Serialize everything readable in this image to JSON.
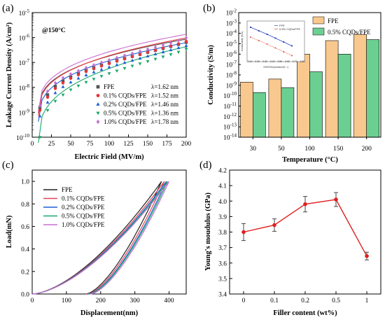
{
  "chart_data": [
    {
      "panel": "(a)",
      "type": "scatter",
      "xlabel": "Electric Field (MV/m)",
      "ylabel": "Leakage Current Density (A/cm²)",
      "annotation": "@150°C",
      "xlim": [
        0,
        200
      ],
      "ylim_exp": [
        -10,
        -5
      ],
      "ylog": true,
      "x_ticks": [
        "0",
        "25",
        "50",
        "75",
        "100",
        "125",
        "150",
        "175",
        "200"
      ],
      "y_ticks": [
        {
          "base": "10",
          "exp": "-10"
        },
        {
          "base": "10",
          "exp": "-9"
        },
        {
          "base": "10",
          "exp": "-8"
        },
        {
          "base": "10",
          "exp": "-7"
        },
        {
          "base": "10",
          "exp": "-6"
        },
        {
          "base": "10",
          "exp": "-5"
        }
      ],
      "x": [
        10,
        20,
        30,
        40,
        50,
        60,
        70,
        80,
        90,
        100,
        110,
        120,
        130,
        140,
        150,
        160,
        170,
        180,
        190,
        200
      ],
      "series": [
        {
          "name": "FPE",
          "lambda": "λ=1.62 nm",
          "color": "#555555",
          "marker": "square",
          "values": [
            1.5e-09,
            5e-09,
            1.1e-08,
            1.8e-08,
            2.6e-08,
            3.6e-08,
            4.8e-08,
            6.2e-08,
            7.8e-08,
            9.6e-08,
            1.2e-07,
            1.45e-07,
            1.75e-07,
            2.1e-07,
            2.55e-07,
            3.05e-07,
            3.65e-07,
            4.4e-07,
            5.3e-07,
            6.5e-07
          ]
        },
        {
          "name": "0.1% CQDs/FPE",
          "lambda": "λ=1.52 nm",
          "color": "#e8343c",
          "marker": "circle",
          "values": [
            1.2e-09,
            4e-09,
            9e-09,
            1.5e-08,
            2.3e-08,
            3.2e-08,
            4.3e-08,
            5.6e-08,
            7.2e-08,
            9e-08,
            1.12e-07,
            1.38e-07,
            1.7e-07,
            2.08e-07,
            2.55e-07,
            3.1e-07,
            3.8e-07,
            4.6e-07,
            5.6e-07,
            7e-07
          ]
        },
        {
          "name": "0.2% CQDs/FPE",
          "lambda": "λ=1.46 nm",
          "color": "#1f5fd6",
          "marker": "triangle-up",
          "values": [
            7e-10,
            2.5e-09,
            6e-09,
            1.05e-08,
            1.6e-08,
            2.3e-08,
            3.1e-08,
            4.1e-08,
            5.2e-08,
            6.5e-08,
            8e-08,
            9.8e-08,
            1.2e-07,
            1.46e-07,
            1.78e-07,
            2.16e-07,
            2.62e-07,
            3.18e-07,
            3.86e-07,
            4.7e-07
          ]
        },
        {
          "name": "0.5% CQDs/FPE",
          "lambda": "λ=1.36 nm",
          "color": "#1aa86a",
          "marker": "triangle-down",
          "values": [
            1e-10,
            1.2e-09,
            2.8e-09,
            5e-09,
            8e-09,
            1.15e-08,
            1.6e-08,
            2.15e-08,
            2.8e-08,
            3.6e-08,
            4.6e-08,
            5.8e-08,
            7.2e-08,
            8.9e-08,
            1.1e-07,
            1.36e-07,
            1.68e-07,
            2.08e-07,
            2.6e-07,
            3.4e-07
          ]
        },
        {
          "name": "1.0% CQDs/FPE",
          "lambda": "λ=1.78 nm",
          "color": "#c86ed2",
          "marker": "diamond",
          "values": [
            1.8e-09,
            7e-09,
            1.5e-08,
            2.4e-08,
            3.4e-08,
            4.6e-08,
            6.1e-08,
            7.9e-08,
            1e-07,
            1.25e-07,
            1.55e-07,
            1.9e-07,
            2.3e-07,
            2.8e-07,
            3.4e-07,
            4.1e-07,
            5e-07,
            6.1e-07,
            7.6e-07,
            9.7e-07
          ]
        }
      ],
      "fit_end_values": [
        8.6e-07,
        9.6e-07,
        6.2e-07,
        4.3e-07,
        1.35e-06
      ]
    },
    {
      "panel": "(b)",
      "type": "bar",
      "xlabel": "Temperature (°C)",
      "ylabel": "Conductivity (S/m)",
      "ylog": true,
      "ylim_exp": [
        -14,
        -2
      ],
      "categories": [
        "30",
        "50",
        "100",
        "150",
        "200"
      ],
      "y_ticks": [
        {
          "base": "10",
          "exp": "-14"
        },
        {
          "base": "10",
          "exp": "-13"
        },
        {
          "base": "10",
          "exp": "-12"
        },
        {
          "base": "10",
          "exp": "-11"
        },
        {
          "base": "10",
          "exp": "-10"
        },
        {
          "base": "10",
          "exp": "-9"
        },
        {
          "base": "10",
          "exp": "-8"
        },
        {
          "base": "10",
          "exp": "-7"
        },
        {
          "base": "10",
          "exp": "-6"
        },
        {
          "base": "10",
          "exp": "-5"
        },
        {
          "base": "10",
          "exp": "-4"
        },
        {
          "base": "10",
          "exp": "-3"
        },
        {
          "base": "10",
          "exp": "-2"
        }
      ],
      "series": [
        {
          "name": "FPE",
          "color": "#f8c88e",
          "values": [
            2e-09,
            4e-09,
            1e-06,
            2e-05,
            8e-05
          ]
        },
        {
          "name": "0.5% CQDs/FPE",
          "color": "#6ccf92",
          "values": [
            2e-10,
            6e-10,
            2e-08,
            1e-06,
            2.5e-05
          ]
        }
      ],
      "inset": {
        "type": "scatter",
        "xlabel": "1000/Temperature(K⁻¹)",
        "ylabel": "Conductivity (S/m)",
        "x_ticks": [
          "2.10",
          "2.20",
          "2.30",
          "2.40",
          "2.50",
          "2.60",
          "2.70",
          "2.80"
        ],
        "series": [
          {
            "name": "FPE",
            "color": "#2a45c8",
            "x": [
              2.11,
              2.22,
              2.33,
              2.44,
              2.55,
              2.66
            ],
            "y_norm": [
              0.9,
              0.8,
              0.7,
              0.59,
              0.48,
              0.37
            ]
          },
          {
            "name": "0.5% CQDs/FPE",
            "color": "#e0503a",
            "x": [
              2.11,
              2.22,
              2.33,
              2.44,
              2.55,
              2.66
            ],
            "y_norm": [
              0.62,
              0.52,
              0.42,
              0.31,
              0.2,
              0.09
            ]
          }
        ]
      }
    },
    {
      "panel": "(c)",
      "type": "line",
      "xlabel": "Displacement(nm)",
      "ylabel": "Load(mN)",
      "xlim": [
        0,
        450
      ],
      "ylim": [
        0,
        1.1
      ],
      "x_ticks": [
        "0",
        "100",
        "200",
        "300",
        "400"
      ],
      "y_ticks": [
        "0.0",
        "0.2",
        "0.4",
        "0.6",
        "0.8",
        "1.0"
      ],
      "series": [
        {
          "name": "FPE",
          "color": "#222222",
          "max_x": 378,
          "unload_end_x": 158
        },
        {
          "name": "0.1% CQDs/FPE",
          "color": "#e0445a",
          "max_x": 386,
          "unload_end_x": 162
        },
        {
          "name": "0.2% CQDs/FPE",
          "color": "#1f5fd6",
          "max_x": 392,
          "unload_end_x": 166
        },
        {
          "name": "0.5% CQDs/FPE",
          "color": "#1aa86a",
          "max_x": 396,
          "unload_end_x": 168
        },
        {
          "name": "1.0% CQDs/FPE",
          "color": "#c86ed2",
          "max_x": 400,
          "unload_end_x": 172
        }
      ]
    },
    {
      "panel": "(d)",
      "type": "line",
      "xlabel": "Filler content (wt%)",
      "ylabel": "Young's moudulus (GPa)",
      "ylim": [
        3.4,
        4.2
      ],
      "categories": [
        "0",
        "0.1",
        "0.2",
        "0.5",
        "1"
      ],
      "y_ticks": [
        "3.4",
        "3.5",
        "3.6",
        "3.7",
        "3.8",
        "3.9",
        "4.0",
        "4.1",
        "4.2"
      ],
      "values": [
        3.8,
        3.845,
        3.98,
        4.01,
        3.645
      ],
      "errors": [
        0.055,
        0.04,
        0.05,
        0.045,
        0.025
      ],
      "color": "#e02020"
    }
  ]
}
